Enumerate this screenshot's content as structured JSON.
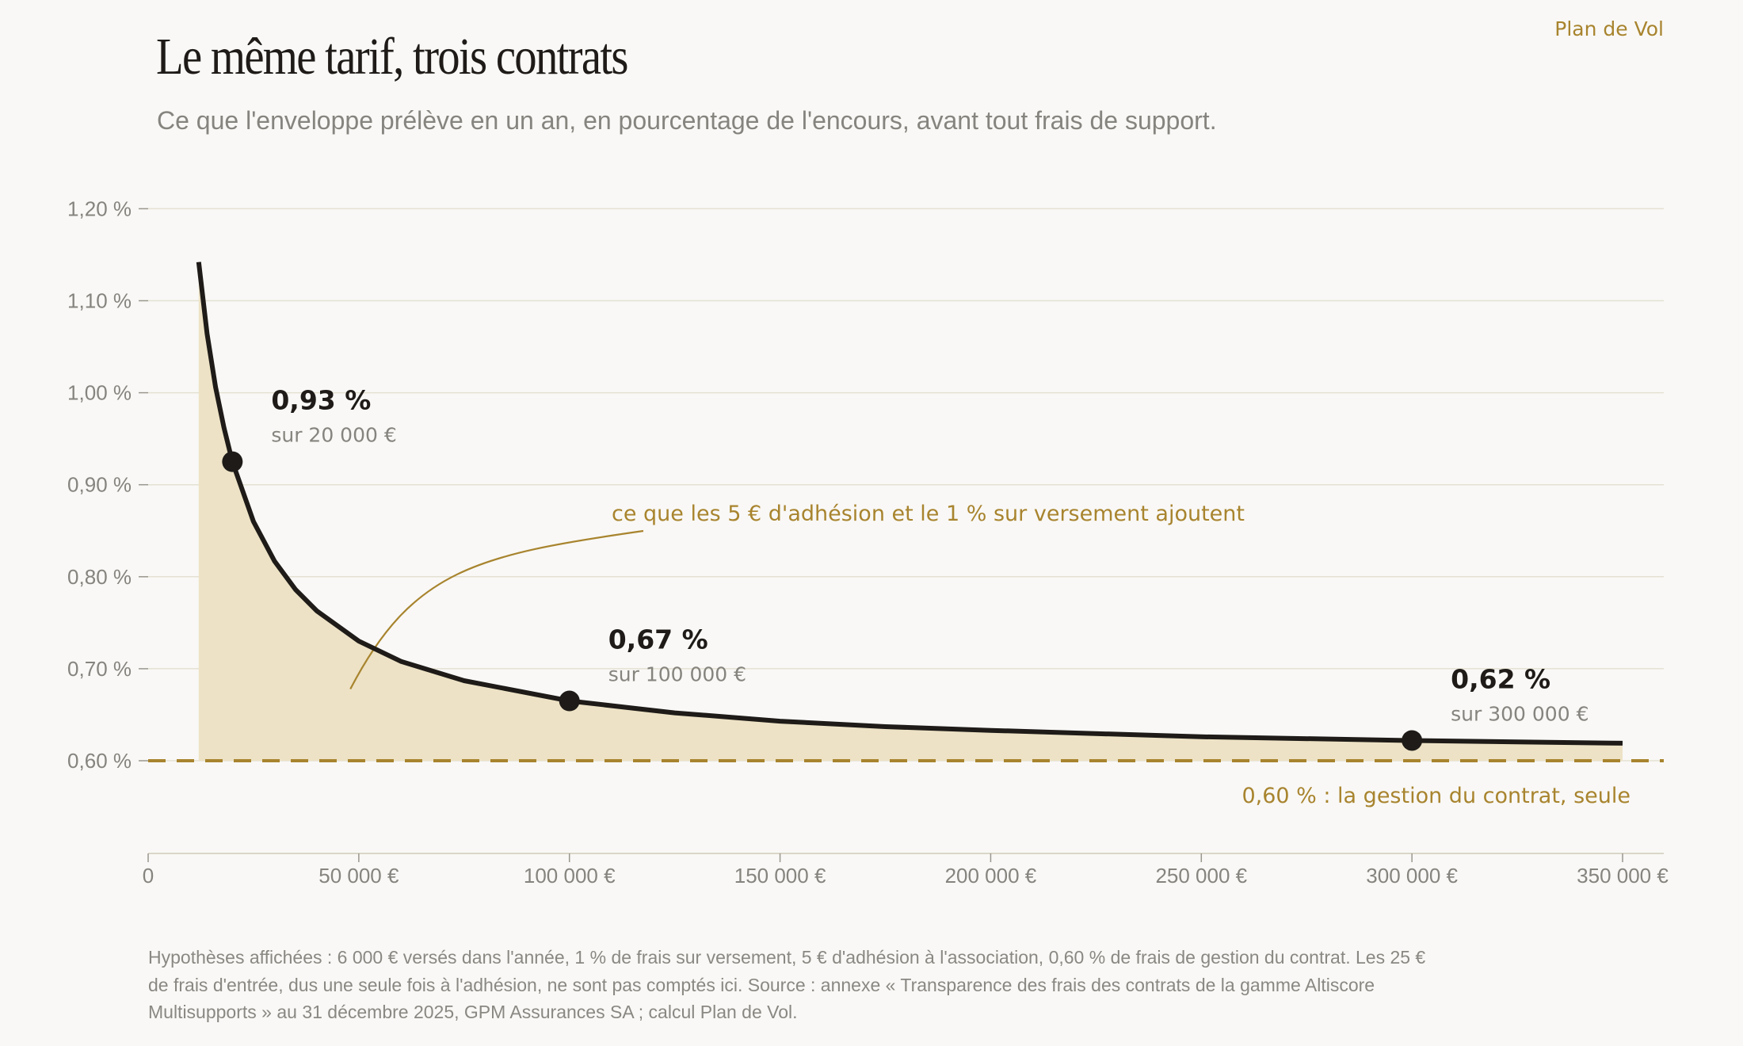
{
  "brand": "Plan de Vol",
  "title": "Le même tarif, trois contrats",
  "subtitle": "Ce que l'enveloppe prélève en un an, en pourcentage de l'encours, avant tout frais de support.",
  "footnote": "Hypothèses affichées : 6 000 € versés dans l'année, 1 % de frais sur versement, 5 € d'adhésion à l'association, 0,60 % de frais de gestion du contrat. Les 25 € de frais d'entrée, dus une seule fois à l'adhésion, ne sont pas comptés ici. Source : annexe « Transparence des frais des contrats de la gamme Altiscore Multisupports » au 31 décembre 2025, GPM Assurances SA ; calcul Plan de Vol.",
  "colors": {
    "line": "#1e1b18",
    "fill": "#ede2c5",
    "accent": "#a8842e",
    "grid": "#e4e1d2",
    "muted": "#86847e"
  },
  "chart_data": {
    "type": "line",
    "x_ticks": [
      {
        "value": 0,
        "label": "0"
      },
      {
        "value": 50000,
        "label": "50 000 €"
      },
      {
        "value": 100000,
        "label": "100 000 €"
      },
      {
        "value": 150000,
        "label": "150 000 €"
      },
      {
        "value": 200000,
        "label": "200 000 €"
      },
      {
        "value": 250000,
        "label": "250 000 €"
      },
      {
        "value": 300000,
        "label": "300 000 €"
      },
      {
        "value": 350000,
        "label": "350 000 €"
      }
    ],
    "y_ticks": [
      {
        "value": 0.6,
        "label": "0,60 %"
      },
      {
        "value": 0.7,
        "label": "0,70 %"
      },
      {
        "value": 0.8,
        "label": "0,80 %"
      },
      {
        "value": 0.9,
        "label": "0,90 %"
      },
      {
        "value": 1.0,
        "label": "1,00 %"
      },
      {
        "value": 1.1,
        "label": "1,10 %"
      },
      {
        "value": 1.2,
        "label": "1,20 %"
      }
    ],
    "xlim": [
      0,
      360000
    ],
    "ylim": [
      0.5,
      1.2
    ],
    "grid": true,
    "series": [
      {
        "x": [
          12000,
          14000,
          16000,
          18000,
          20000,
          25000,
          30000,
          35000,
          40000,
          50000,
          60000,
          75000,
          100000,
          125000,
          150000,
          175000,
          200000,
          250000,
          300000,
          350000
        ],
        "y": [
          1.142,
          1.064,
          1.006,
          0.962,
          0.925,
          0.86,
          0.817,
          0.786,
          0.763,
          0.73,
          0.708,
          0.687,
          0.665,
          0.652,
          0.643,
          0.637,
          0.633,
          0.626,
          0.622,
          0.619
        ]
      }
    ],
    "baseline": {
      "y": 0.6,
      "label": "0,60 % : la gestion du contrat, seule"
    },
    "highlights": [
      {
        "x": 20000,
        "y": 0.925,
        "value_label": "0,93 %",
        "sub_label": "sur 20 000 €"
      },
      {
        "x": 100000,
        "y": 0.665,
        "value_label": "0,67 %",
        "sub_label": "sur 100 000 €"
      },
      {
        "x": 300000,
        "y": 0.622,
        "value_label": "0,62 %",
        "sub_label": "sur 300 000 €"
      }
    ],
    "annotation": {
      "text": "ce que les 5 € d'adhésion et le 1 % sur versement ajoutent",
      "points_to_x": 48000,
      "points_to_y": 0.69
    }
  }
}
